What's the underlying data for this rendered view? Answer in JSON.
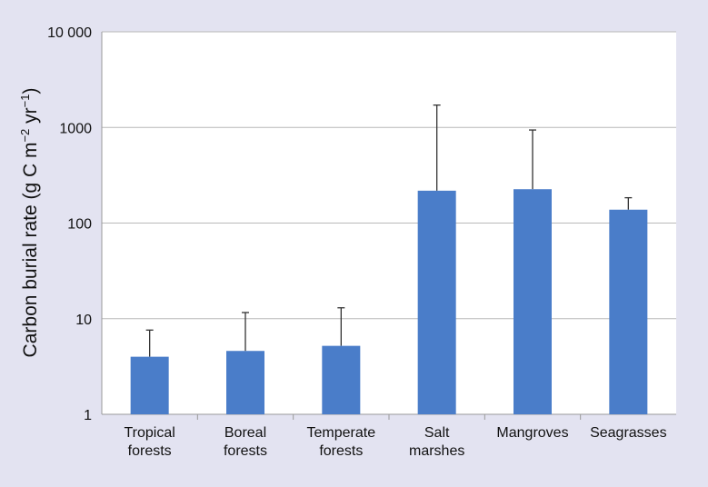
{
  "chart_data": {
    "type": "bar",
    "scale": "log",
    "ylabel_main": "Carbon burial rate (g C m",
    "ylabel_sup1": "−2",
    "ylabel_mid": " yr",
    "ylabel_sup2": "−1",
    "ylabel_end": ")",
    "ylim": [
      1,
      10000
    ],
    "grid": true,
    "yticks": [
      1,
      10,
      100,
      1000,
      10000
    ],
    "ytick_labels": [
      "1",
      "10",
      "100",
      "1000",
      "10 000"
    ],
    "categories": [
      [
        "Tropical",
        "forests"
      ],
      [
        "Boreal",
        "forests"
      ],
      [
        "Temperate",
        "forests"
      ],
      [
        "Salt",
        "marshes"
      ],
      [
        "Mangroves"
      ],
      [
        "Seagrasses"
      ]
    ],
    "values": [
      4.0,
      4.6,
      5.2,
      218,
      226,
      138
    ],
    "error_upper": [
      7.6,
      11.6,
      13.0,
      1713,
      940,
      184
    ],
    "colors": {
      "bar": "#4a7dc9",
      "plot_bg": "#ffffff",
      "page_bg": "#e3e3f1",
      "grid": "#b8b8b8"
    }
  }
}
